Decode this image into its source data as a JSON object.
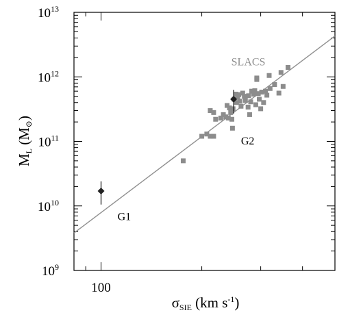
{
  "chart_data": {
    "type": "scatter",
    "title": "",
    "xscale": "log",
    "yscale": "log",
    "xlim": [
      83,
      500
    ],
    "ylim": [
      1000000000.0,
      10000000000000.0
    ],
    "xlabel": {
      "main": "σ",
      "sub": "SIE",
      "unit": "(km s",
      "exp": "-1",
      "close": ")"
    },
    "ylabel": {
      "main": "M",
      "sub": "L",
      "unit": "(M",
      "unit_sub": "⊙",
      "close": ")"
    },
    "x_ticks": [
      {
        "value": 100,
        "label": "100"
      }
    ],
    "y_ticks": [
      {
        "value": 1000000000.0,
        "base": "10",
        "exp": "9"
      },
      {
        "value": 10000000000.0,
        "base": "10",
        "exp": "10"
      },
      {
        "value": 100000000000.0,
        "base": "10",
        "exp": "11"
      },
      {
        "value": 1000000000000.0,
        "base": "10",
        "exp": "12"
      },
      {
        "value": 10000000000000.0,
        "base": "10",
        "exp": "13"
      }
    ],
    "x_minor_ticks": [
      90,
      200,
      300,
      400
    ],
    "annotations": [
      {
        "text": "SLACS",
        "x": 245,
        "y": 1500000000000.0,
        "color": "#909090"
      },
      {
        "text": "G2",
        "x": 262,
        "y": 90000000000.0,
        "color": "#000000"
      },
      {
        "text": "G1",
        "x": 112,
        "y": 6000000000.0,
        "color": "#000000"
      }
    ],
    "fit_line": {
      "x": [
        83,
        500
      ],
      "y": [
        3800000000.0,
        4300000000000.0
      ],
      "color": "#909090"
    },
    "series": [
      {
        "marker": "square",
        "color": "#8c8c8c",
        "points": [
          {
            "x": 176,
            "y": 50000000000.0
          },
          {
            "x": 200,
            "y": 120000000000.0
          },
          {
            "x": 207,
            "y": 130000000000.0
          },
          {
            "x": 212,
            "y": 120000000000.0
          },
          {
            "x": 217,
            "y": 120000000000.0
          },
          {
            "x": 212,
            "y": 300000000000.0
          },
          {
            "x": 217,
            "y": 280000000000.0
          },
          {
            "x": 220,
            "y": 220000000000.0
          },
          {
            "x": 228,
            "y": 230000000000.0
          },
          {
            "x": 232,
            "y": 260000000000.0
          },
          {
            "x": 236,
            "y": 240000000000.0
          },
          {
            "x": 240,
            "y": 230000000000.0
          },
          {
            "x": 242,
            "y": 330000000000.0
          },
          {
            "x": 244,
            "y": 280000000000.0
          },
          {
            "x": 246,
            "y": 220000000000.0
          },
          {
            "x": 247,
            "y": 160000000000.0
          },
          {
            "x": 238,
            "y": 360000000000.0
          },
          {
            "x": 248,
            "y": 320000000000.0
          },
          {
            "x": 250,
            "y": 450000000000.0
          },
          {
            "x": 254,
            "y": 400000000000.0
          },
          {
            "x": 256,
            "y": 480000000000.0
          },
          {
            "x": 258,
            "y": 530000000000.0
          },
          {
            "x": 253,
            "y": 540000000000.0
          },
          {
            "x": 260,
            "y": 420000000000.0
          },
          {
            "x": 262,
            "y": 350000000000.0
          },
          {
            "x": 265,
            "y": 560000000000.0
          },
          {
            "x": 268,
            "y": 500000000000.0
          },
          {
            "x": 270,
            "y": 430000000000.0
          },
          {
            "x": 275,
            "y": 340000000000.0
          },
          {
            "x": 278,
            "y": 260000000000.0
          },
          {
            "x": 276,
            "y": 510000000000.0
          },
          {
            "x": 280,
            "y": 410000000000.0
          },
          {
            "x": 282,
            "y": 600000000000.0
          },
          {
            "x": 286,
            "y": 540000000000.0
          },
          {
            "x": 288,
            "y": 610000000000.0
          },
          {
            "x": 290,
            "y": 370000000000.0
          },
          {
            "x": 292,
            "y": 910000000000.0
          },
          {
            "x": 295,
            "y": 550000000000.0
          },
          {
            "x": 297,
            "y": 450000000000.0
          },
          {
            "x": 300,
            "y": 320000000000.0
          },
          {
            "x": 302,
            "y": 580000000000.0
          },
          {
            "x": 306,
            "y": 400000000000.0
          },
          {
            "x": 310,
            "y": 600000000000.0
          },
          {
            "x": 313,
            "y": 520000000000.0
          },
          {
            "x": 318,
            "y": 1050000000000.0
          },
          {
            "x": 320,
            "y": 660000000000.0
          },
          {
            "x": 330,
            "y": 760000000000.0
          },
          {
            "x": 340,
            "y": 560000000000.0
          },
          {
            "x": 350,
            "y": 710000000000.0
          },
          {
            "x": 345,
            "y": 1170000000000.0
          },
          {
            "x": 362,
            "y": 1400000000000.0
          },
          {
            "x": 292,
            "y": 960000000000.0
          }
        ]
      },
      {
        "marker": "diamond",
        "color": "#222222",
        "error_bars": true,
        "points": [
          {
            "x": 100,
            "y": 17000000000.0,
            "ylo": 10500000000.0,
            "yhi": 24000000000.0
          },
          {
            "x": 249,
            "y": 450000000000.0,
            "ylo": 270000000000.0,
            "yhi": 630000000000.0
          }
        ]
      }
    ]
  }
}
